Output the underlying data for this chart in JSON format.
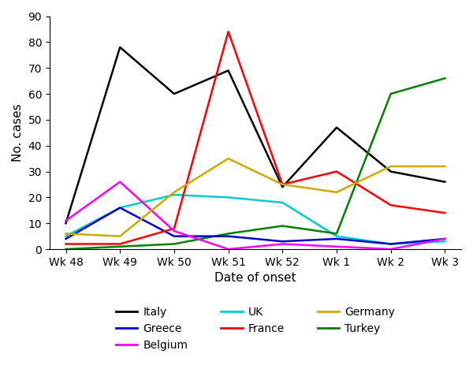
{
  "x_labels": [
    "Wk 48",
    "Wk 49",
    "Wk 50",
    "Wk 51",
    "Wk 52",
    "Wk 1",
    "Wk 2",
    "Wk 3"
  ],
  "series": {
    "Italy": [
      10,
      78,
      60,
      69,
      24,
      47,
      30,
      26
    ],
    "UK": [
      5,
      16,
      21,
      20,
      18,
      5,
      2,
      3
    ],
    "Turkey": [
      0,
      1,
      2,
      6,
      9,
      6,
      60,
      66
    ],
    "Greece": [
      4,
      16,
      5,
      5,
      3,
      4,
      2,
      4
    ],
    "France": [
      2,
      2,
      8,
      84,
      25,
      30,
      17,
      14
    ],
    "Belgium": [
      11,
      26,
      7,
      0,
      2,
      1,
      0,
      4
    ],
    "Germany": [
      6,
      5,
      22,
      35,
      25,
      22,
      32,
      32
    ]
  },
  "colors": {
    "Italy": "#000000",
    "UK": "#00CCCC",
    "Turkey": "#008000",
    "Greece": "#0000CC",
    "France": "#FF0000",
    "Belgium": "#FF00FF",
    "Germany": "#CCAA00"
  },
  "ylim": [
    0,
    90
  ],
  "yticks": [
    0,
    10,
    20,
    30,
    40,
    50,
    60,
    70,
    80,
    90
  ],
  "xlabel": "Date of onset",
  "ylabel": "No. cases",
  "legend_col1": [
    "Italy",
    "UK",
    "Turkey"
  ],
  "legend_col2": [
    "Greece",
    "France"
  ],
  "legend_col3": [
    "Belgium",
    "Germany"
  ]
}
